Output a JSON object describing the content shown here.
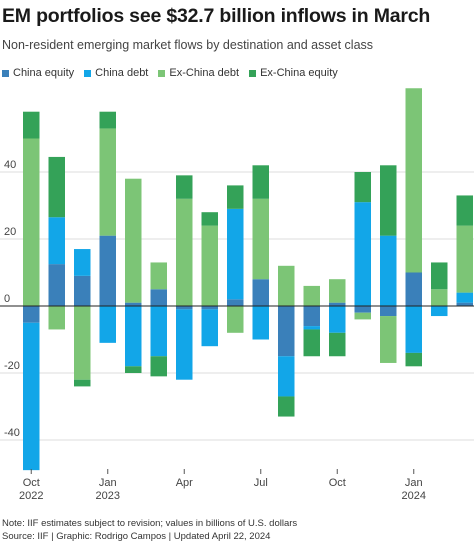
{
  "header": {
    "title": "EM portfolios see $32.7 billion inflows in March",
    "subtitle": "Non-resident emerging market flows by destination and asset class"
  },
  "footer": {
    "note": "Note: IIF estimates subject to revision; values in billions of U.S. dollars",
    "source": "Source: IIF | Graphic: Rodrigo Campos | Updated April 22, 2024"
  },
  "colors": {
    "china_equity": "#3a80ba",
    "china_debt": "#12a6e8",
    "exchina_debt": "#7cc576",
    "exchina_equity": "#34a258",
    "gridline": "#dddddd",
    "zero_line": "#222222"
  },
  "chart_data": {
    "type": "bar",
    "stacked": true,
    "categories": [
      "2022-10",
      "2022-11",
      "2022-12",
      "2023-01",
      "2023-02",
      "2023-03",
      "2023-04",
      "2023-05",
      "2023-06",
      "2023-07",
      "2023-08",
      "2023-09",
      "2023-10",
      "2023-11",
      "2023-12",
      "2024-01",
      "2024-02",
      "2024-03"
    ],
    "x_tick_labels": [
      {
        "index": 0,
        "month": "Oct",
        "year": "2022"
      },
      {
        "index": 3,
        "month": "Jan",
        "year": "2023"
      },
      {
        "index": 6,
        "month": "Apr",
        "year": ""
      },
      {
        "index": 9,
        "month": "Jul",
        "year": ""
      },
      {
        "index": 12,
        "month": "Oct",
        "year": ""
      },
      {
        "index": 15,
        "month": "Jan",
        "year": "2024"
      }
    ],
    "y_ticks": [
      40,
      20,
      0,
      -20,
      -40
    ],
    "ylim": [
      -50,
      58
    ],
    "grid": true,
    "legend_position": "top-left",
    "series": [
      {
        "name": "China equity",
        "key": "china_equity",
        "values": [
          -5,
          12.5,
          9,
          21,
          1,
          5,
          -1,
          -1,
          2,
          8,
          -15,
          -6,
          1,
          -2,
          -3,
          10,
          0,
          1
        ]
      },
      {
        "name": "China debt",
        "key": "china_debt",
        "values": [
          -44,
          14,
          8,
          -11,
          -18,
          -15,
          -21,
          -11,
          27,
          -10,
          -12,
          -1,
          -8,
          31,
          21,
          -14,
          -3,
          3
        ]
      },
      {
        "name": "Ex-China debt",
        "key": "exchina_debt",
        "values": [
          50,
          -7,
          -22,
          32,
          37,
          8,
          32,
          24,
          -8,
          24,
          12,
          6,
          7,
          -2,
          -14,
          55,
          5,
          20
        ]
      },
      {
        "name": "Ex-China equity",
        "key": "exchina_equity",
        "values": [
          8,
          18,
          -2,
          5,
          -2,
          -6,
          7,
          4,
          7,
          10,
          -6,
          -8,
          -7,
          9,
          21,
          -4,
          8,
          9
        ]
      }
    ]
  }
}
